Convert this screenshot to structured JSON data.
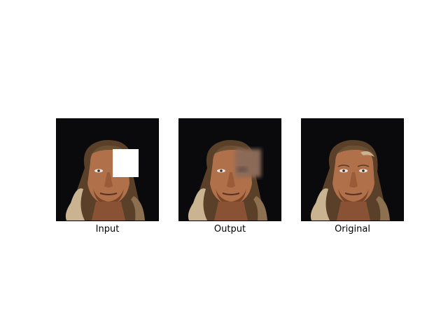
{
  "panels": [
    {
      "caption": "Input",
      "mask": "white-square"
    },
    {
      "caption": "Output",
      "mask": "blurred-inpaint"
    },
    {
      "caption": "Original",
      "mask": "none"
    }
  ],
  "colors": {
    "background": "#0a0a0c",
    "skin": "#b0704a",
    "skin_shadow": "#7a4428",
    "hair": "#6b5034",
    "hair_light": "#c9b391",
    "mask": "#ffffff",
    "frame": "#000000"
  }
}
